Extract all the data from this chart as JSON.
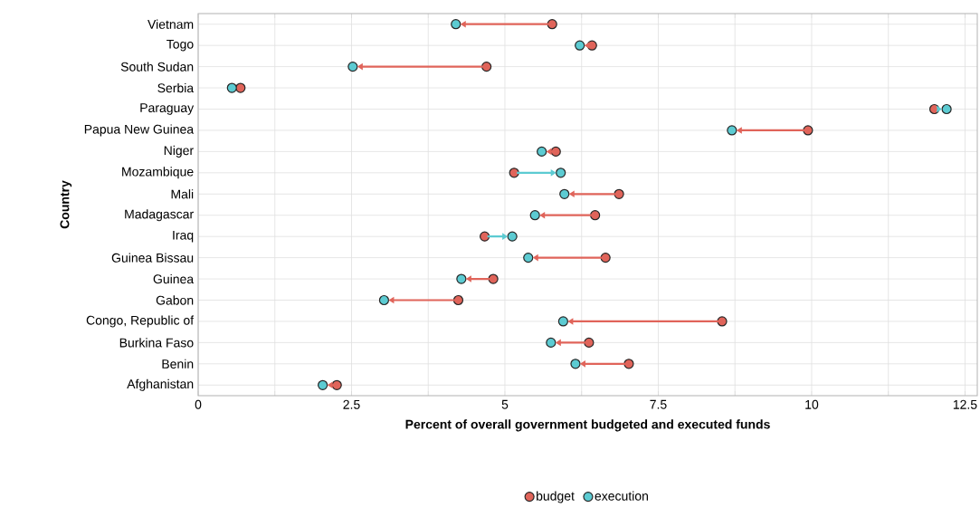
{
  "chart_data": {
    "type": "scatter",
    "orientation": "horizontal",
    "xlabel": "Percent of overall government budgeted and executed funds",
    "ylabel": "Country",
    "categories": [
      "Vietnam",
      "Togo",
      "South Sudan",
      "Serbia",
      "Paraguay",
      "Papua New Guinea",
      "Niger",
      "Mozambique",
      "Mali",
      "Madagascar",
      "Iraq",
      "Guinea Bissau",
      "Guinea",
      "Gabon",
      "Congo, Republic of",
      "Burkina Faso",
      "Benin",
      "Afghanistan"
    ],
    "series": [
      {
        "name": "budget",
        "color": "#e0645a",
        "values": [
          5.77,
          6.42,
          4.7,
          0.69,
          12.0,
          9.94,
          5.83,
          5.15,
          6.86,
          6.47,
          4.67,
          6.64,
          4.81,
          4.24,
          8.54,
          6.37,
          7.02,
          2.26
        ]
      },
      {
        "name": "execution",
        "color": "#5ccbd2",
        "values": [
          4.2,
          6.22,
          2.52,
          0.55,
          12.2,
          8.7,
          5.6,
          5.91,
          5.97,
          5.49,
          5.12,
          5.38,
          4.29,
          3.03,
          5.95,
          5.75,
          6.15,
          2.03
        ]
      }
    ],
    "xlim": [
      0,
      12.7
    ],
    "xticks": [
      0,
      {
        "value": 1.25,
        "label": null
      },
      2.5,
      {
        "value": 3.75,
        "label": null
      },
      5,
      {
        "value": 6.25,
        "label": null
      },
      7.5,
      {
        "value": 8.75,
        "label": null
      },
      10,
      {
        "value": 11.25,
        "label": null
      },
      12.5
    ],
    "grid": true,
    "legend": "bottom"
  }
}
